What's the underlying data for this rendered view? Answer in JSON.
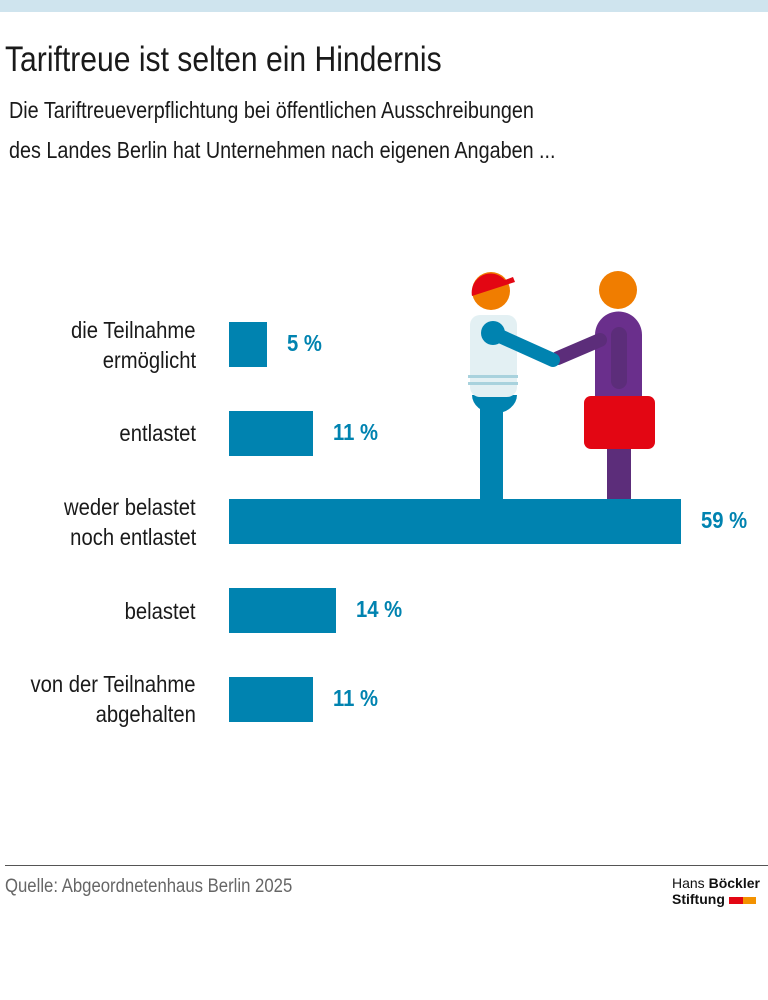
{
  "title": "Tariftreue ist selten ein Hindernis",
  "subtitle": [
    "Die Tariftreueverpflichtung bei öffentlichen Ausschreibungen",
    "des Landes Berlin hat Unternehmen nach eigenen Angaben ..."
  ],
  "source": "Quelle: Abgeordnetenhaus Berlin 2025",
  "logo": {
    "line1a": "Hans",
    "line1b": "Böckler",
    "line2": "Stiftung"
  },
  "colors": {
    "bar": "#0083b0",
    "band": "#cfe4ee",
    "logo_red": "#e30613",
    "logo_orange": "#f39200"
  },
  "illustration": "handshake-icon",
  "chart_data": {
    "type": "bar",
    "orientation": "horizontal",
    "categories": [
      [
        "die Teilnahme",
        "ermöglicht"
      ],
      [
        "entlastet"
      ],
      [
        "weder belastet",
        "noch entlastet"
      ],
      [
        "belastet"
      ],
      [
        "von der Teilnahme",
        "abgehalten"
      ]
    ],
    "values": [
      5,
      11,
      59,
      14,
      11
    ],
    "value_labels": [
      "5 %",
      "11 %",
      "59 %",
      "14 %",
      "11 %"
    ],
    "unit": "%",
    "grid": false
  }
}
